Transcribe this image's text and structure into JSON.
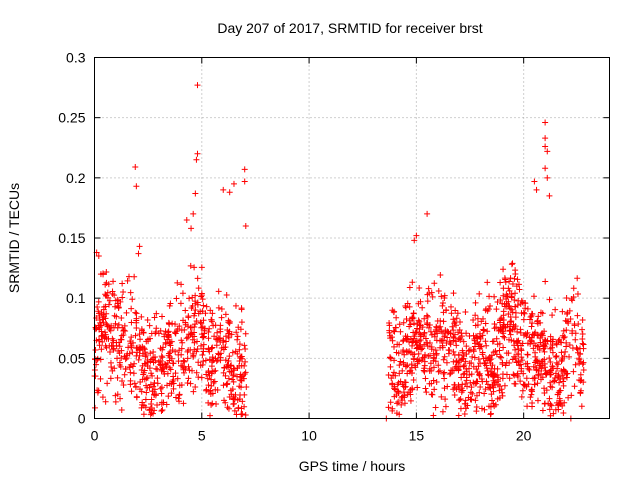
{
  "chart_data": {
    "type": "scatter",
    "title": "Day 207 of 2017, SRMTID for receiver brst",
    "xlabel": "GPS time / hours",
    "ylabel": "SRMTID / TECUs",
    "xlim": [
      0,
      24
    ],
    "ylim": [
      0,
      0.3
    ],
    "x_ticks": [
      0,
      5,
      10,
      15,
      20
    ],
    "x_tick_labels": [
      "0",
      "5",
      "10",
      "15",
      "20"
    ],
    "y_ticks": [
      0,
      0.05,
      0.1,
      0.15,
      0.2,
      0.25,
      0.3
    ],
    "y_tick_labels": [
      "0",
      "0.05",
      "0.1",
      "0.15",
      "0.2",
      "0.25",
      "0.3"
    ],
    "grid": true,
    "marker": "plus",
    "color": "#ff0000",
    "series": [
      {
        "name": "SRMTID",
        "segments": [
          {
            "x_start": 0.0,
            "x_end": 7.1,
            "count": 700
          },
          {
            "x_start": 13.7,
            "x_end": 22.8,
            "count": 1000
          }
        ],
        "points": [
          [
            0.1,
            0.138
          ],
          [
            0.2,
            0.135
          ],
          [
            0.3,
            0.12
          ],
          [
            1.9,
            0.209
          ],
          [
            1.95,
            0.193
          ],
          [
            2.1,
            0.143
          ],
          [
            2.05,
            0.137
          ],
          [
            4.8,
            0.277
          ],
          [
            4.8,
            0.22
          ],
          [
            4.75,
            0.215
          ],
          [
            4.7,
            0.187
          ],
          [
            4.6,
            0.17
          ],
          [
            4.5,
            0.158
          ],
          [
            4.3,
            0.165
          ],
          [
            6.5,
            0.195
          ],
          [
            6.3,
            0.188
          ],
          [
            6.0,
            0.19
          ],
          [
            7.0,
            0.207
          ],
          [
            7.0,
            0.197
          ],
          [
            7.05,
            0.16
          ],
          [
            13.6,
            0.0
          ],
          [
            22.2,
            0.0
          ],
          [
            15.5,
            0.17
          ],
          [
            15.0,
            0.152
          ],
          [
            14.9,
            0.148
          ],
          [
            20.5,
            0.197
          ],
          [
            20.6,
            0.19
          ],
          [
            21.0,
            0.246
          ],
          [
            21.0,
            0.233
          ],
          [
            21.0,
            0.226
          ],
          [
            21.1,
            0.222
          ],
          [
            21.0,
            0.208
          ],
          [
            21.1,
            0.2
          ],
          [
            21.2,
            0.185
          ]
        ]
      }
    ]
  }
}
